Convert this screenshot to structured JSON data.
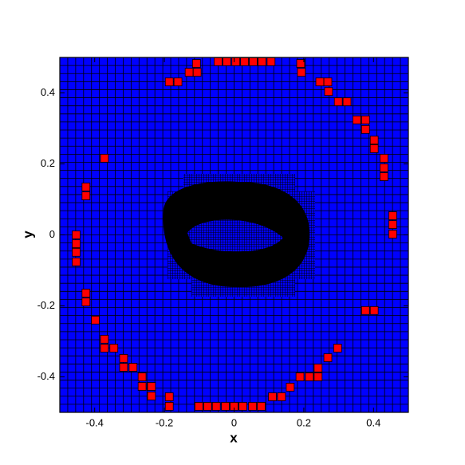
{
  "chart_data": {
    "type": "scatter",
    "xlabel": "x",
    "ylabel": "y",
    "xlim": [
      -0.5,
      0.5
    ],
    "ylim": [
      -0.5,
      0.5
    ],
    "xticks": [
      -0.4,
      -0.2,
      0,
      0.2,
      0.4
    ],
    "yticks": [
      -0.4,
      -0.2,
      0,
      0.2,
      0.4
    ],
    "color": "#ff0000",
    "background": "#0000ff",
    "marker": "square",
    "x": [
      -0.046,
      -0.021,
      0.005,
      0.03,
      0.055,
      0.08,
      0.106,
      -0.108,
      0.191,
      -0.129,
      -0.106,
      0.193,
      -0.186,
      -0.161,
      0.246,
      0.269,
      0.271,
      0.299,
      0.324,
      0.352,
      0.377,
      0.377,
      0.402,
      0.402,
      0.43,
      0.43,
      0.43,
      -0.372,
      -0.425,
      -0.425,
      0.455,
      0.455,
      0.455,
      -0.453,
      -0.453,
      -0.453,
      -0.453,
      -0.425,
      -0.425,
      0.377,
      0.402,
      -0.398,
      -0.372,
      -0.372,
      -0.345,
      -0.317,
      -0.317,
      -0.29,
      -0.264,
      -0.264,
      -0.237,
      -0.237,
      -0.186,
      -0.186,
      -0.101,
      -0.076,
      -0.051,
      -0.025,
      0,
      0.025,
      0.053,
      0.078,
      0.11,
      0.136,
      0.161,
      0.189,
      0.216,
      0.241,
      0.241,
      0.269,
      0.297
    ],
    "y": [
      0.488,
      0.488,
      0.488,
      0.488,
      0.488,
      0.488,
      0.488,
      0.483,
      0.483,
      0.458,
      0.458,
      0.458,
      0.431,
      0.431,
      0.431,
      0.431,
      0.404,
      0.375,
      0.375,
      0.324,
      0.324,
      0.297,
      0.267,
      0.243,
      0.216,
      0.189,
      0.164,
      0.216,
      0.135,
      0.11,
      0.054,
      0.029,
      0.002,
      0,
      -0.025,
      -0.049,
      -0.076,
      -0.164,
      -0.189,
      -0.213,
      -0.213,
      -0.24,
      -0.294,
      -0.319,
      -0.319,
      -0.348,
      -0.373,
      -0.373,
      -0.4,
      -0.427,
      -0.427,
      -0.454,
      -0.456,
      -0.483,
      -0.483,
      -0.483,
      -0.483,
      -0.483,
      -0.483,
      -0.483,
      -0.483,
      -0.483,
      -0.456,
      -0.456,
      -0.429,
      -0.4,
      -0.4,
      -0.375,
      -0.4,
      -0.346,
      -0.319
    ]
  }
}
